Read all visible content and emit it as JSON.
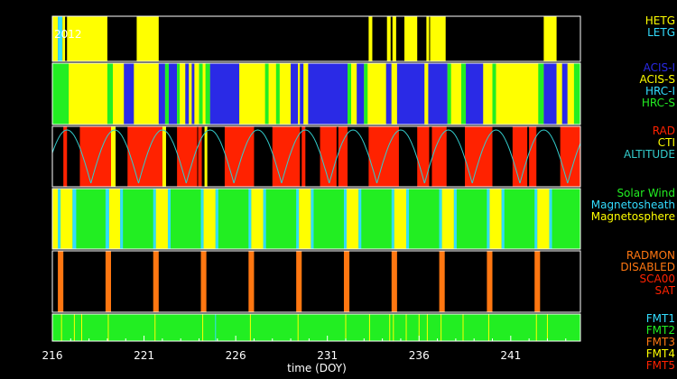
{
  "chart_data": {
    "type": "timeline",
    "year_label": "2012",
    "xlabel": "time (DOY)",
    "xlim": [
      216,
      244.8
    ],
    "xticks": [
      216,
      221,
      226,
      231,
      236,
      241
    ],
    "colors": {
      "yellow": "#ffff00",
      "cyan": "#33ddff",
      "blue": "#2a2ae6",
      "green": "#22ee22",
      "red": "#ff2200",
      "orange": "#ff7711",
      "black": "#000000",
      "altitude": "#33cccc"
    },
    "panels": [
      {
        "name": "grating",
        "legend": [
          {
            "label": "HETG",
            "color": "#ffff00"
          },
          {
            "label": "LETG",
            "color": "#33ddff"
          }
        ],
        "background": "#000000",
        "segments": [
          [
            216.0,
            216.3,
            "#ffff00"
          ],
          [
            216.3,
            216.55,
            "#33ddff"
          ],
          [
            216.55,
            216.7,
            "#ffff00"
          ],
          [
            216.7,
            216.8,
            "#000000"
          ],
          [
            216.8,
            219.0,
            "#ffff00"
          ],
          [
            220.6,
            221.8,
            "#ffff00"
          ],
          [
            233.25,
            233.45,
            "#ffff00"
          ],
          [
            234.25,
            234.45,
            "#ffff00"
          ],
          [
            234.55,
            234.75,
            "#ffff00"
          ],
          [
            235.2,
            235.9,
            "#ffff00"
          ],
          [
            236.4,
            236.55,
            "#ffff00"
          ],
          [
            236.6,
            237.45,
            "#ffff00"
          ],
          [
            242.8,
            243.5,
            "#ffff00"
          ]
        ]
      },
      {
        "name": "instrument",
        "legend": [
          {
            "label": "ACIS-I",
            "color": "#2a2ae6"
          },
          {
            "label": "ACIS-S",
            "color": "#ffff00"
          },
          {
            "label": "HRC-I",
            "color": "#33ddff"
          },
          {
            "label": "HRC-S",
            "color": "#22ee22"
          }
        ],
        "background": "#ffff00",
        "segments": [
          [
            216.0,
            216.9,
            "#22ee22"
          ],
          [
            216.9,
            219.0,
            "#ffff00"
          ],
          [
            219.0,
            219.3,
            "#22ee22"
          ],
          [
            219.3,
            219.9,
            "#ffff00"
          ],
          [
            219.9,
            220.45,
            "#2a2ae6"
          ],
          [
            220.45,
            221.8,
            "#ffff00"
          ],
          [
            221.8,
            222.15,
            "#2a2ae6"
          ],
          [
            222.15,
            222.35,
            "#22ee22"
          ],
          [
            222.35,
            222.8,
            "#2a2ae6"
          ],
          [
            222.8,
            222.95,
            "#22ee22"
          ],
          [
            222.95,
            223.25,
            "#ffff00"
          ],
          [
            223.25,
            223.45,
            "#2a2ae6"
          ],
          [
            223.45,
            223.6,
            "#ffff00"
          ],
          [
            223.6,
            223.75,
            "#2a2ae6"
          ],
          [
            223.75,
            224.0,
            "#ffff00"
          ],
          [
            224.0,
            224.2,
            "#22ee22"
          ],
          [
            224.2,
            224.35,
            "#ffff00"
          ],
          [
            224.35,
            224.6,
            "#22ee22"
          ],
          [
            224.6,
            226.2,
            "#2a2ae6"
          ],
          [
            226.2,
            227.6,
            "#ffff00"
          ],
          [
            227.6,
            227.8,
            "#22ee22"
          ],
          [
            227.8,
            228.2,
            "#ffff00"
          ],
          [
            228.2,
            228.4,
            "#22ee22"
          ],
          [
            228.4,
            229.0,
            "#ffff00"
          ],
          [
            229.0,
            229.4,
            "#2a2ae6"
          ],
          [
            229.4,
            229.5,
            "#ffff00"
          ],
          [
            229.5,
            229.7,
            "#2a2ae6"
          ],
          [
            229.7,
            229.95,
            "#ffff00"
          ],
          [
            229.95,
            232.1,
            "#2a2ae6"
          ],
          [
            232.1,
            232.3,
            "#22ee22"
          ],
          [
            232.3,
            232.6,
            "#ffff00"
          ],
          [
            232.6,
            233.0,
            "#2a2ae6"
          ],
          [
            233.0,
            233.2,
            "#22ee22"
          ],
          [
            233.2,
            234.2,
            "#ffff00"
          ],
          [
            234.2,
            234.5,
            "#2a2ae6"
          ],
          [
            234.5,
            234.8,
            "#ffff00"
          ],
          [
            234.8,
            236.3,
            "#2a2ae6"
          ],
          [
            236.3,
            236.5,
            "#ffff00"
          ],
          [
            236.5,
            237.55,
            "#2a2ae6"
          ],
          [
            237.55,
            237.75,
            "#22ee22"
          ],
          [
            237.75,
            238.3,
            "#ffff00"
          ],
          [
            238.3,
            238.55,
            "#22ee22"
          ],
          [
            238.55,
            239.5,
            "#2a2ae6"
          ],
          [
            239.5,
            240.0,
            "#ffff00"
          ],
          [
            240.0,
            240.2,
            "#22ee22"
          ],
          [
            240.2,
            242.5,
            "#ffff00"
          ],
          [
            242.5,
            242.8,
            "#22ee22"
          ],
          [
            242.8,
            243.5,
            "#2a2ae6"
          ],
          [
            243.5,
            243.8,
            "#ffff00"
          ],
          [
            243.8,
            244.1,
            "#2a2ae6"
          ],
          [
            244.1,
            244.45,
            "#ffff00"
          ],
          [
            244.45,
            244.8,
            "#22ee22"
          ]
        ]
      },
      {
        "name": "radiation",
        "legend": [
          {
            "label": "RAD",
            "color": "#ff2200"
          },
          {
            "label": "CTI",
            "color": "#ffff00"
          },
          {
            "label": "ALTITUDE",
            "color": "#33cccc"
          }
        ],
        "background": "#000000",
        "segments": [
          [
            216.6,
            216.8,
            "#ff2200"
          ],
          [
            217.5,
            219.2,
            "#ff2200"
          ],
          [
            219.2,
            219.45,
            "#ffff00"
          ],
          [
            220.1,
            222.0,
            "#ff2200"
          ],
          [
            222.0,
            222.2,
            "#ffff00"
          ],
          [
            222.8,
            223.9,
            "#ff2200"
          ],
          [
            223.95,
            224.15,
            "#ff2200"
          ],
          [
            224.3,
            224.45,
            "#ffff00"
          ],
          [
            225.4,
            227.0,
            "#ff2200"
          ],
          [
            228.0,
            229.5,
            "#ff2200"
          ],
          [
            229.6,
            229.8,
            "#ff2200"
          ],
          [
            230.6,
            231.5,
            "#ff2200"
          ],
          [
            231.6,
            232.1,
            "#ff2200"
          ],
          [
            233.25,
            234.9,
            "#ff2200"
          ],
          [
            235.9,
            236.55,
            "#ff2200"
          ],
          [
            236.7,
            237.5,
            "#ff2200"
          ],
          [
            238.5,
            240.0,
            "#ff2200"
          ],
          [
            241.1,
            241.9,
            "#ff2200"
          ],
          [
            242.0,
            242.4,
            "#ff2200"
          ],
          [
            243.7,
            244.8,
            "#ff2200"
          ]
        ],
        "altitude_arcs": [
          [
            215.5,
            218.1
          ],
          [
            218.1,
            220.7
          ],
          [
            220.7,
            223.3
          ],
          [
            223.3,
            225.9
          ],
          [
            225.9,
            228.5
          ],
          [
            228.5,
            231.1
          ],
          [
            231.1,
            233.7
          ],
          [
            233.7,
            236.3
          ],
          [
            236.3,
            238.9
          ],
          [
            238.9,
            241.5
          ],
          [
            241.5,
            244.1
          ],
          [
            244.1,
            246.7
          ]
        ]
      },
      {
        "name": "environment",
        "legend": [
          {
            "label": "Solar Wind",
            "color": "#22ee22"
          },
          {
            "label": "Magnetosheath",
            "color": "#33ddff"
          },
          {
            "label": "Magnetosphere",
            "color": "#ffff00"
          }
        ],
        "background": "#22ee22",
        "segments": [
          [
            216.0,
            216.3,
            "#ffff00"
          ],
          [
            216.3,
            216.45,
            "#33ddff"
          ],
          [
            216.45,
            217.1,
            "#ffff00"
          ],
          [
            217.1,
            217.3,
            "#33ddff"
          ],
          [
            218.9,
            219.1,
            "#33ddff"
          ],
          [
            219.1,
            219.7,
            "#ffff00"
          ],
          [
            219.7,
            219.85,
            "#33ddff"
          ],
          [
            221.5,
            221.65,
            "#33ddff"
          ],
          [
            221.65,
            222.3,
            "#ffff00"
          ],
          [
            222.3,
            222.45,
            "#33ddff"
          ],
          [
            224.1,
            224.25,
            "#33ddff"
          ],
          [
            224.25,
            224.9,
            "#ffff00"
          ],
          [
            224.9,
            225.05,
            "#33ddff"
          ],
          [
            226.7,
            226.85,
            "#33ddff"
          ],
          [
            226.85,
            227.5,
            "#ffff00"
          ],
          [
            227.5,
            227.65,
            "#33ddff"
          ],
          [
            229.3,
            229.45,
            "#33ddff"
          ],
          [
            229.45,
            230.1,
            "#ffff00"
          ],
          [
            230.1,
            230.25,
            "#33ddff"
          ],
          [
            231.9,
            232.05,
            "#33ddff"
          ],
          [
            232.05,
            232.7,
            "#ffff00"
          ],
          [
            232.7,
            232.85,
            "#33ddff"
          ],
          [
            234.5,
            234.65,
            "#33ddff"
          ],
          [
            234.65,
            235.3,
            "#ffff00"
          ],
          [
            235.3,
            235.45,
            "#33ddff"
          ],
          [
            237.1,
            237.25,
            "#33ddff"
          ],
          [
            237.25,
            237.9,
            "#ffff00"
          ],
          [
            237.9,
            238.05,
            "#33ddff"
          ],
          [
            239.7,
            239.85,
            "#33ddff"
          ],
          [
            239.85,
            240.5,
            "#ffff00"
          ],
          [
            240.5,
            240.65,
            "#33ddff"
          ],
          [
            242.3,
            242.45,
            "#33ddff"
          ],
          [
            242.45,
            243.1,
            "#ffff00"
          ],
          [
            243.1,
            243.25,
            "#33ddff"
          ]
        ]
      },
      {
        "name": "radmon",
        "legend": [
          {
            "label": "RADMON",
            "color": "#ff7711"
          },
          {
            "label": "DISABLED",
            "color": "#ff7711"
          },
          {
            "label": "SCA00",
            "color": "#ff2200"
          },
          {
            "label": "SAT",
            "color": "#ff2200"
          }
        ],
        "background": "#000000",
        "segments": [
          [
            216.3,
            216.6,
            "#ff7711"
          ],
          [
            218.9,
            219.2,
            "#ff7711"
          ],
          [
            221.5,
            221.8,
            "#ff7711"
          ],
          [
            224.1,
            224.4,
            "#ff7711"
          ],
          [
            226.7,
            227.0,
            "#ff7711"
          ],
          [
            229.3,
            229.6,
            "#ff7711"
          ],
          [
            231.9,
            232.2,
            "#ff7711"
          ],
          [
            234.5,
            234.8,
            "#ff7711"
          ],
          [
            237.1,
            237.4,
            "#ff7711"
          ],
          [
            239.7,
            240.0,
            "#ff7711"
          ],
          [
            242.3,
            242.6,
            "#ff7711"
          ]
        ]
      },
      {
        "name": "format",
        "legend": [
          {
            "label": "FMT1",
            "color": "#33ddff"
          },
          {
            "label": "FMT2",
            "color": "#22ee22"
          },
          {
            "label": "FMT3",
            "color": "#ff7711"
          },
          {
            "label": "FMT4",
            "color": "#ffff00"
          },
          {
            "label": "FMT5",
            "color": "#ff2200"
          }
        ],
        "background": "#22ee22",
        "ticks": [
          [
            216.5,
            "#ffff00"
          ],
          [
            217.2,
            "#ffff00"
          ],
          [
            217.6,
            "#ffff00"
          ],
          [
            219.05,
            "#ffff00"
          ],
          [
            221.6,
            "#ffff00"
          ],
          [
            224.2,
            "#ffff00"
          ],
          [
            224.9,
            "#33ddff"
          ],
          [
            226.8,
            "#ffff00"
          ],
          [
            229.4,
            "#ffff00"
          ],
          [
            232.0,
            "#ffff00"
          ],
          [
            233.3,
            "#ffff00"
          ],
          [
            234.4,
            "#ffff00"
          ],
          [
            234.6,
            "#ffff00"
          ],
          [
            235.3,
            "#ffff00"
          ],
          [
            236.0,
            "#ffff00"
          ],
          [
            236.45,
            "#ffff00"
          ],
          [
            237.2,
            "#ffff00"
          ],
          [
            238.4,
            "#ffff00"
          ],
          [
            239.8,
            "#ffff00"
          ],
          [
            242.4,
            "#ffff00"
          ],
          [
            243.0,
            "#ffff00"
          ]
        ]
      }
    ]
  }
}
